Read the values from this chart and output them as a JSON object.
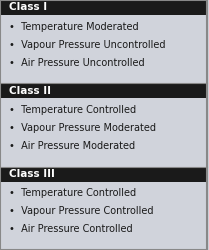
{
  "classes": [
    {
      "header": "Class I",
      "items": [
        "Temperature Moderated",
        "Vapour Pressure Uncontrolled",
        "Air Pressure Uncontrolled"
      ]
    },
    {
      "header": "Class II",
      "items": [
        "Temperature Controlled",
        "Vapour Pressure Moderated",
        "Air Pressure Moderated"
      ]
    },
    {
      "header": "Class III",
      "items": [
        "Temperature Controlled",
        "Vapour Pressure Controlled",
        "Air Pressure Controlled"
      ]
    }
  ],
  "header_bg": "#1a1a1a",
  "header_text_color": "#ffffff",
  "body_bg": "#d0d3db",
  "body_text_color": "#1a1a1a",
  "border_color": "#888888",
  "outer_border_color": "#888888",
  "header_fontsize": 7.5,
  "body_fontsize": 7.0,
  "bullet": "•"
}
